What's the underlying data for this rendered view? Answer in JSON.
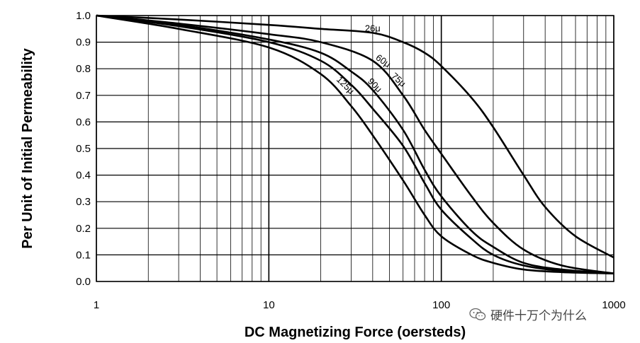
{
  "chart_data": {
    "type": "line",
    "xlabel": "DC Magnetizing Force (oersteds)",
    "ylabel": "Per Unit of Initial Permeability",
    "x_scale": "log",
    "xlim": [
      1,
      1000
    ],
    "ylim": [
      0,
      1.0
    ],
    "x_ticks": [
      "1",
      "10",
      "100",
      "1000"
    ],
    "y_ticks": [
      "0.0",
      "0.1",
      "0.2",
      "0.3",
      "0.4",
      "0.5",
      "0.6",
      "0.7",
      "0.8",
      "0.9",
      "1.0"
    ],
    "grid": true,
    "series": [
      {
        "name": "26μ",
        "x": [
          1,
          3,
          10,
          20,
          40,
          60,
          80,
          100,
          150,
          200,
          300,
          400,
          600,
          1000
        ],
        "y": [
          1.0,
          0.985,
          0.965,
          0.95,
          0.935,
          0.9,
          0.86,
          0.81,
          0.69,
          0.58,
          0.4,
          0.28,
          0.17,
          0.09
        ]
      },
      {
        "name": "60μ",
        "x": [
          1,
          3,
          10,
          20,
          40,
          60,
          80,
          100,
          150,
          200,
          300,
          500,
          1000
        ],
        "y": [
          1.0,
          0.97,
          0.93,
          0.9,
          0.83,
          0.7,
          0.57,
          0.48,
          0.32,
          0.22,
          0.12,
          0.06,
          0.03
        ]
      },
      {
        "name": "75μ",
        "x": [
          1,
          3,
          10,
          20,
          30,
          40,
          60,
          80,
          100,
          150,
          200,
          300,
          500,
          1000
        ],
        "y": [
          1.0,
          0.965,
          0.91,
          0.86,
          0.79,
          0.72,
          0.57,
          0.42,
          0.32,
          0.19,
          0.13,
          0.07,
          0.045,
          0.03
        ]
      },
      {
        "name": "90μ",
        "x": [
          1,
          3,
          10,
          20,
          30,
          40,
          60,
          80,
          100,
          150,
          200,
          300,
          500,
          1000
        ],
        "y": [
          1.0,
          0.96,
          0.9,
          0.83,
          0.74,
          0.65,
          0.51,
          0.37,
          0.27,
          0.16,
          0.1,
          0.06,
          0.04,
          0.03
        ]
      },
      {
        "name": "125μ",
        "x": [
          1,
          3,
          10,
          20,
          30,
          40,
          60,
          80,
          100,
          150,
          200,
          300,
          500,
          1000
        ],
        "y": [
          1.0,
          0.95,
          0.88,
          0.78,
          0.66,
          0.55,
          0.38,
          0.25,
          0.17,
          0.1,
          0.07,
          0.045,
          0.035,
          0.03
        ]
      }
    ]
  },
  "watermark": {
    "text": "硬件十万个为什么",
    "icon": "wechat-icon"
  }
}
